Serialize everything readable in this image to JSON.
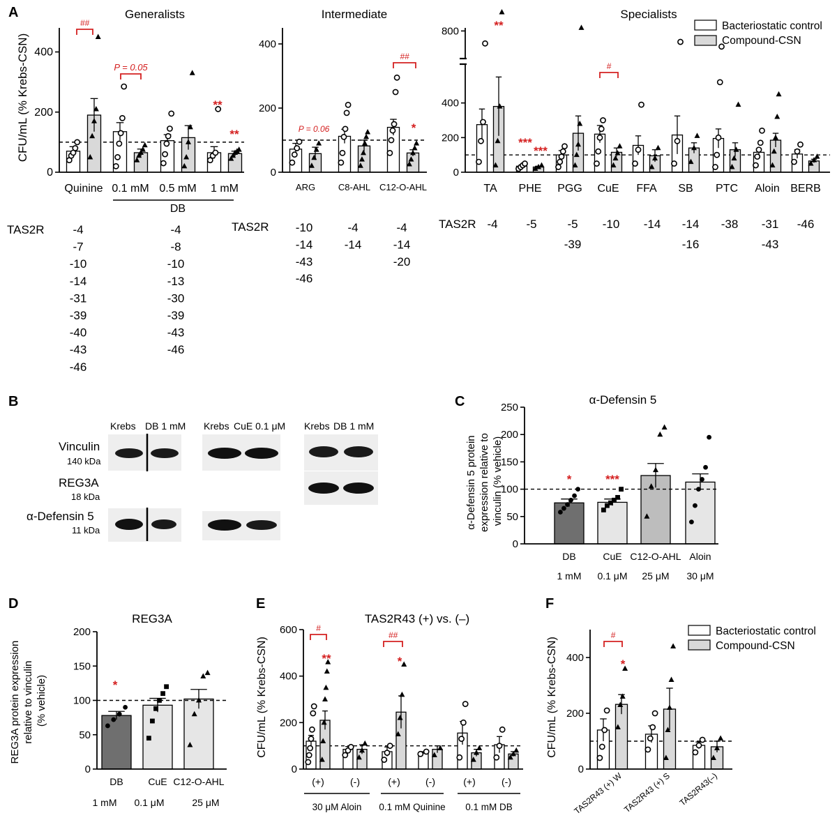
{
  "figure": {
    "panel_labels": [
      "A",
      "B",
      "C",
      "D",
      "E",
      "F"
    ],
    "legend": {
      "control": "Bacteriostatic control",
      "compound": "Compound-CSN"
    },
    "colors": {
      "control_fill": "#ffffff",
      "compound_fill": "#d9d9d9",
      "significance": "#d42020",
      "dark_bar": "#6f6f6f",
      "mid_bar": "#bdbdbd",
      "light_bar": "#e6e6e6",
      "ink": "#111111"
    }
  },
  "chart_data": [
    {
      "id": "A1",
      "type": "bar",
      "title": "Generalists",
      "ylabel": "CFU/mL (% Krebs-CSN)",
      "ylim": [
        0,
        480
      ],
      "yticks": [
        0,
        200,
        400
      ],
      "reference_line": 100,
      "groups": [
        {
          "label": "Quinine",
          "control": 70,
          "compound": 190,
          "control_sem": 15,
          "compound_sem": 55,
          "control_points": [
            40,
            55,
            65,
            80,
            100
          ],
          "compound_points": [
            50,
            120,
            170,
            210,
            450
          ]
        },
        {
          "label": "0.1 mM",
          "control": 135,
          "compound": 65,
          "control_sem": 30,
          "compound_sem": 12,
          "control_points": [
            20,
            50,
            95,
            130,
            180,
            285
          ],
          "compound_points": [
            40,
            55,
            65,
            75,
            90
          ]
        },
        {
          "label": "0.5 mM",
          "control": 105,
          "compound": 115,
          "control_sem": 20,
          "compound_sem": 40,
          "control_points": [
            30,
            60,
            95,
            120,
            145,
            195
          ],
          "compound_points": [
            20,
            50,
            100,
            150,
            330
          ]
        },
        {
          "label": "1 mM",
          "control": 65,
          "compound": 62,
          "control_sem": 20,
          "compound_sem": 8,
          "control_points": [
            40,
            55,
            65,
            210
          ],
          "compound_points": [
            45,
            55,
            65,
            70,
            75
          ]
        }
      ],
      "group_caption": "DB",
      "annotations": [
        {
          "text": "##",
          "bracket": "Quinine"
        },
        {
          "text": "P = 0.05",
          "bracket": "0.1 mM"
        },
        {
          "text": "**",
          "over": "1 mM control"
        },
        {
          "text": "**",
          "over": "1 mM compound"
        }
      ]
    },
    {
      "id": "A2",
      "type": "bar",
      "title": "Intermediate",
      "ylim": [
        0,
        450
      ],
      "yticks": [
        0,
        200,
        400
      ],
      "reference_line": 100,
      "groups": [
        {
          "label": "ARG",
          "control": 72,
          "compound": 58,
          "control_sem": 18,
          "compound_sem": 20,
          "control_points": [
            30,
            55,
            75,
            95
          ],
          "compound_points": [
            20,
            45,
            70,
            90
          ]
        },
        {
          "label": "C8-AHL",
          "control": 112,
          "compound": 82,
          "control_sem": 22,
          "compound_sem": 18,
          "control_points": [
            30,
            60,
            110,
            135,
            185,
            210
          ],
          "compound_points": [
            20,
            40,
            60,
            90,
            110,
            125
          ]
        },
        {
          "label": "C12-O-AHL",
          "control": 140,
          "compound": 60,
          "control_sem": 25,
          "compound_sem": 10,
          "control_points": [
            60,
            100,
            130,
            150,
            250,
            295
          ],
          "compound_points": [
            25,
            40,
            60,
            75,
            90
          ]
        }
      ],
      "annotations": [
        {
          "text": "P = 0.06",
          "over": "ARG"
        },
        {
          "text": "##",
          "bracket": "C12-O-AHL"
        },
        {
          "text": "*",
          "over": "C12-O-AHL compound"
        }
      ]
    },
    {
      "id": "A3",
      "type": "bar",
      "title": "Specialists",
      "ylim": [
        0,
        900
      ],
      "yticks": [
        0,
        200,
        400,
        800
      ],
      "axis_break": [
        600,
        650
      ],
      "reference_line": 100,
      "groups": [
        {
          "label": "TA",
          "control": 275,
          "compound": 380,
          "control_sem": 90,
          "compound_sem": 170,
          "control_points": [
            60,
            180,
            290,
            720
          ],
          "compound_points": [
            40,
            180,
            380,
            920
          ]
        },
        {
          "label": "PHE",
          "control": 35,
          "compound": 30,
          "control_sem": 5,
          "compound_sem": 5,
          "control_points": [
            20,
            30,
            40,
            50
          ],
          "compound_points": [
            20,
            30,
            40
          ]
        },
        {
          "label": "PGG",
          "control": 100,
          "compound": 225,
          "control_sem": 25,
          "compound_sem": 100,
          "control_points": [
            30,
            60,
            90,
            120,
            150
          ],
          "compound_points": [
            40,
            100,
            160,
            280,
            820
          ]
        },
        {
          "label": "CuE",
          "control": 220,
          "compound": 115,
          "control_sem": 50,
          "compound_sem": 25,
          "control_points": [
            50,
            120,
            200,
            250,
            300
          ],
          "compound_points": [
            40,
            80,
            110,
            150
          ]
        },
        {
          "label": "FFA",
          "control": 155,
          "compound": 95,
          "control_sem": 55,
          "compound_sem": 35,
          "control_points": [
            50,
            130,
            390
          ],
          "compound_points": [
            30,
            80,
            140
          ]
        },
        {
          "label": "SB",
          "control": 215,
          "compound": 140,
          "control_sem": 110,
          "compound_sem": 30,
          "control_points": [
            50,
            180,
            730
          ],
          "compound_points": [
            60,
            140,
            210
          ]
        },
        {
          "label": "PTC",
          "control": 195,
          "compound": 130,
          "control_sem": 55,
          "compound_sem": 40,
          "control_points": [
            30,
            100,
            200,
            520,
            700
          ],
          "compound_points": [
            30,
            80,
            130,
            390
          ]
        },
        {
          "label": "Aloin",
          "control": 115,
          "compound": 185,
          "control_sem": 20,
          "compound_sem": 40,
          "control_points": [
            40,
            90,
            130,
            170,
            240
          ],
          "compound_points": [
            40,
            120,
            200,
            320,
            450
          ]
        },
        {
          "label": "BERB",
          "control": 105,
          "compound": 65,
          "control_sem": 25,
          "compound_sem": 10,
          "control_points": [
            60,
            120,
            160
          ],
          "compound_points": [
            50,
            70,
            90
          ]
        }
      ],
      "annotations": [
        {
          "text": "**",
          "over": "TA compound"
        },
        {
          "text": "***",
          "over": "PHE control"
        },
        {
          "text": "***",
          "over": "PHE compound"
        },
        {
          "text": "#",
          "bracket": "CuE"
        }
      ]
    },
    {
      "id": "C",
      "type": "bar",
      "title": "α-Defensin 5",
      "ylabel": "α-Defensin 5 protein expression relative to vinculin (% vehicle)",
      "ylim": [
        0,
        250
      ],
      "yticks": [
        0,
        50,
        100,
        150,
        200,
        250
      ],
      "reference_line": 100,
      "categories": [
        "DB",
        "CuE",
        "C12-O-AHL",
        "Aloin"
      ],
      "concentrations": [
        "1 mM",
        "0.1 μM",
        "25 μM",
        "30 μM"
      ],
      "values": [
        75,
        76,
        125,
        113
      ],
      "sem": [
        7,
        6,
        22,
        15
      ],
      "points": [
        [
          58,
          65,
          72,
          80,
          88,
          100
        ],
        [
          62,
          70,
          75,
          80,
          85,
          100
        ],
        [
          50,
          105,
          135,
          200,
          213
        ],
        [
          40,
          70,
          100,
          118,
          140,
          195
        ]
      ],
      "annotations": [
        {
          "text": "*",
          "over": "DB"
        },
        {
          "text": "***",
          "over": "CuE"
        }
      ]
    },
    {
      "id": "D",
      "type": "bar",
      "title": "REG3A",
      "ylabel": "REG3A protein expression relative to vinculin (% vehicle)",
      "ylim": [
        0,
        200
      ],
      "yticks": [
        0,
        50,
        100,
        150,
        200
      ],
      "reference_line": 100,
      "categories": [
        "DB",
        "CuE",
        "C12-O-AHL"
      ],
      "concentrations": [
        "1 mM",
        "0.1 μM",
        "25 μM"
      ],
      "values": [
        78,
        93,
        102
      ],
      "sem": [
        6,
        10,
        14
      ],
      "points": [
        [
          63,
          72,
          80,
          90
        ],
        [
          45,
          70,
          88,
          100,
          110,
          120
        ],
        [
          35,
          80,
          100,
          135,
          140
        ]
      ],
      "annotations": [
        {
          "text": "*",
          "over": "DB"
        }
      ]
    },
    {
      "id": "E",
      "type": "bar",
      "title": "TAS2R43 (+) vs. (–)",
      "ylabel": "CFU/mL (% Krebs-CSN)",
      "ylim": [
        0,
        600
      ],
      "yticks": [
        0,
        200,
        400,
        600
      ],
      "reference_line": 100,
      "groups": [
        {
          "label": "(+)",
          "control": 120,
          "compound": 210,
          "control_sem": 25,
          "compound_sem": 40,
          "control_points": [
            30,
            60,
            90,
            130,
            170,
            240,
            270
          ],
          "compound_points": [
            40,
            120,
            200,
            300,
            350,
            420,
            460
          ]
        },
        {
          "label": "(-)",
          "control": 85,
          "compound": 85,
          "control_sem": 12,
          "compound_sem": 20,
          "control_points": [
            60,
            80,
            95
          ],
          "compound_points": [
            50,
            80,
            110
          ]
        },
        {
          "label": "(+)",
          "control": 75,
          "compound": 245,
          "control_sem": 20,
          "compound_sem": 70,
          "control_points": [
            40,
            70,
            100
          ],
          "compound_points": [
            150,
            220,
            320,
            450
          ]
        },
        {
          "label": "(-)",
          "control": 70,
          "compound": 85,
          "control_sem": 5,
          "compound_sem": 15,
          "control_points": [
            65,
            75
          ],
          "compound_points": [
            60,
            90
          ]
        },
        {
          "label": "(+)",
          "control": 155,
          "compound": 70,
          "control_sem": 50,
          "compound_sem": 15,
          "control_points": [
            50,
            130,
            200,
            280
          ],
          "compound_points": [
            40,
            70,
            90
          ]
        },
        {
          "label": "(-)",
          "control": 105,
          "compound": 65,
          "control_sem": 35,
          "compound_sem": 10,
          "control_points": [
            50,
            100,
            170
          ],
          "compound_points": [
            50,
            65,
            80
          ]
        }
      ],
      "group_captions": [
        "30 μM Aloin",
        "0.1 mM Quinine",
        "0.1 mM DB"
      ],
      "annotations": [
        {
          "text": "#",
          "bracket": "Aloin (+)"
        },
        {
          "text": "**",
          "over": "Aloin (+) compound"
        },
        {
          "text": "##",
          "bracket": "Quinine (+)"
        },
        {
          "text": "*",
          "over": "Quinine (+) compound"
        }
      ]
    },
    {
      "id": "F",
      "type": "bar",
      "ylabel": "CFU/mL (% Krebs-CSN)",
      "ylim": [
        0,
        500
      ],
      "yticks": [
        0,
        200,
        400
      ],
      "reference_line": 100,
      "groups": [
        {
          "label": "TAS2R43 (+) W",
          "control": 140,
          "compound": 232,
          "control_sem": 40,
          "compound_sem": 35,
          "control_points": [
            40,
            80,
            140,
            210
          ],
          "compound_points": [
            150,
            230,
            260,
            360
          ]
        },
        {
          "label": "TAS2R43 (+) S",
          "control": 125,
          "compound": 215,
          "control_sem": 30,
          "compound_sem": 75,
          "control_points": [
            70,
            110,
            150,
            200
          ],
          "compound_points": [
            40,
            140,
            220,
            320,
            440
          ]
        },
        {
          "label": "TAS2R43(–)",
          "control": 85,
          "compound": 80,
          "control_sem": 12,
          "compound_sem": 20,
          "control_points": [
            60,
            85,
            105
          ],
          "compound_points": [
            40,
            75,
            110
          ]
        }
      ],
      "annotations": [
        {
          "text": "#",
          "bracket": "TAS2R43 (+) W"
        },
        {
          "text": "*",
          "over": "TAS2R43 (+) W compound"
        }
      ]
    }
  ],
  "tas2r": {
    "label": "TAS2R",
    "generalists": [
      [
        "-4",
        "-7",
        "-10",
        "-14",
        "-31",
        "-39",
        "-40",
        "-43",
        "-46"
      ],
      [
        "-4",
        "-8",
        "-10",
        "-13",
        "-30",
        "-39",
        "-43",
        "-46"
      ]
    ],
    "intermediate": [
      [
        "-10",
        "-14",
        "-43",
        "-46"
      ],
      [
        "-4",
        "-14"
      ],
      [
        "-4",
        "-14",
        "-20"
      ]
    ],
    "specialists": [
      [
        "-4"
      ],
      [
        "-5"
      ],
      [
        "-5",
        "-39"
      ],
      [
        "-10"
      ],
      [
        "-14"
      ],
      [
        "-14",
        "-16"
      ],
      [
        "-38"
      ],
      [
        "-31",
        "-43"
      ],
      [
        "-46"
      ]
    ]
  },
  "blot": {
    "headers": [
      [
        "Krebs",
        "DB 1 mM"
      ],
      [
        "Krebs",
        "CuE 0.1 μM"
      ],
      [
        "Krebs",
        "DB 1 mM"
      ]
    ],
    "rows": [
      {
        "name": "Vinculin",
        "kda": "140 kDa"
      },
      {
        "name": "REG3A",
        "kda": "18 kDa"
      },
      {
        "name": "α-Defensin 5",
        "kda": "11 kDa"
      }
    ]
  }
}
